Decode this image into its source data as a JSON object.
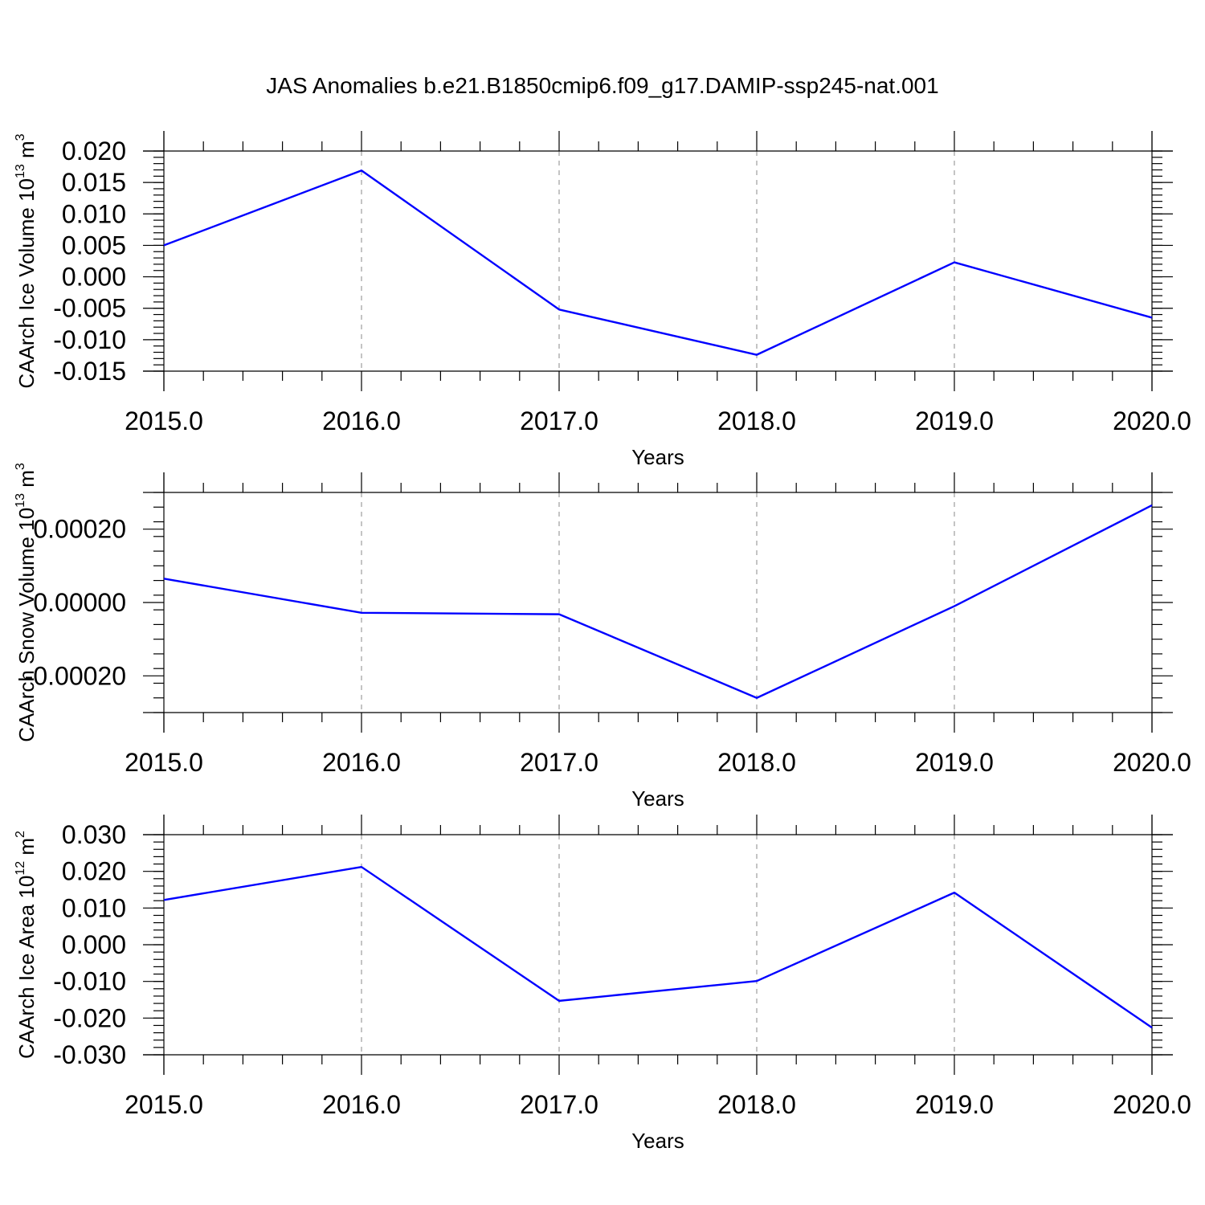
{
  "title": "JAS Anomalies b.e21.B1850cmip6.f09_g17.DAMIP-ssp245-nat.001",
  "line_color": "#0000ff",
  "chart_data": [
    {
      "type": "line",
      "ylabel": {
        "base": "CAArch Ice Volume 10",
        "exponent": "13",
        "unit": " m",
        "unit_exponent": "3"
      },
      "xlabel": "Years",
      "x": [
        2015,
        2016,
        2017,
        2018,
        2019,
        2020
      ],
      "series": [
        {
          "values": [
            0.005,
            0.0169,
            -0.0052,
            -0.0124,
            0.0023,
            -0.0065
          ]
        }
      ],
      "xlim": [
        2015,
        2020
      ],
      "ylim": [
        -0.015,
        0.02
      ],
      "xticks": [
        "2015.0",
        "2016.0",
        "2017.0",
        "2018.0",
        "2019.0",
        "2020.0"
      ],
      "yticks": [
        {
          "value": 0.02,
          "label": "0.020"
        },
        {
          "value": 0.015,
          "label": "0.015"
        },
        {
          "value": 0.01,
          "label": "0.010"
        },
        {
          "value": 0.005,
          "label": "0.005"
        },
        {
          "value": 0.0,
          "label": "0.000"
        },
        {
          "value": -0.005,
          "label": "-0.005"
        },
        {
          "value": -0.01,
          "label": "-0.010"
        },
        {
          "value": -0.015,
          "label": "-0.015"
        }
      ],
      "grid": "vertical-dashed"
    },
    {
      "type": "line",
      "ylabel": {
        "base": "CAArch Snow Volume 10",
        "exponent": "13",
        "unit": " m",
        "unit_exponent": "3"
      },
      "xlabel": "Years",
      "x": [
        2015,
        2016,
        2017,
        2018,
        2019,
        2020
      ],
      "series": [
        {
          "values": [
            6.5e-05,
            -2.8e-05,
            -3.2e-05,
            -0.00026,
            -1e-05,
            0.000265
          ]
        }
      ],
      "xlim": [
        2015,
        2020
      ],
      "ylim": [
        -0.0003,
        0.0003
      ],
      "xticks": [
        "2015.0",
        "2016.0",
        "2017.0",
        "2018.0",
        "2019.0",
        "2020.0"
      ],
      "yticks": [
        {
          "value": 0.0002,
          "label": "0.00020"
        },
        {
          "value": 0.0,
          "label": "0.00000"
        },
        {
          "value": -0.0002,
          "label": "-0.00020"
        }
      ],
      "grid": "vertical-dashed"
    },
    {
      "type": "line",
      "ylabel": {
        "base": "CAArch Ice Area 10",
        "exponent": "12",
        "unit": " m",
        "unit_exponent": "2"
      },
      "xlabel": "Years",
      "x": [
        2015,
        2016,
        2017,
        2018,
        2019,
        2020
      ],
      "series": [
        {
          "values": [
            0.0122,
            0.0212,
            -0.0153,
            -0.0099,
            0.0142,
            -0.0226
          ]
        }
      ],
      "xlim": [
        2015,
        2020
      ],
      "ylim": [
        -0.03,
        0.03
      ],
      "xticks": [
        "2015.0",
        "2016.0",
        "2017.0",
        "2018.0",
        "2019.0",
        "2020.0"
      ],
      "yticks": [
        {
          "value": 0.03,
          "label": "0.030"
        },
        {
          "value": 0.02,
          "label": "0.020"
        },
        {
          "value": 0.01,
          "label": "0.010"
        },
        {
          "value": 0.0,
          "label": "0.000"
        },
        {
          "value": -0.01,
          "label": "-0.010"
        },
        {
          "value": -0.02,
          "label": "-0.020"
        },
        {
          "value": -0.03,
          "label": "-0.030"
        }
      ],
      "grid": "vertical-dashed"
    }
  ]
}
